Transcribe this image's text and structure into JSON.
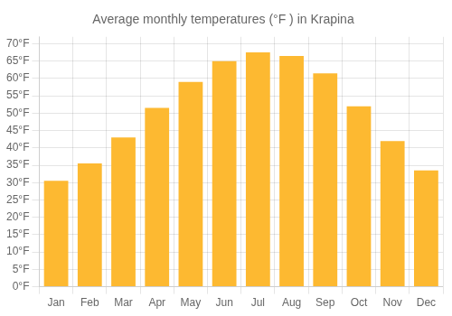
{
  "chart_data": {
    "type": "bar",
    "title": "Average monthly temperatures (°F ) in Krapina",
    "categories": [
      "Jan",
      "Feb",
      "Mar",
      "Apr",
      "May",
      "Jun",
      "Jul",
      "Aug",
      "Sep",
      "Oct",
      "Nov",
      "Dec"
    ],
    "values": [
      30.5,
      35.5,
      43,
      51.5,
      59,
      65,
      67.5,
      66.5,
      61.5,
      52,
      42,
      33.5
    ],
    "color": "#FDB931",
    "ylim": [
      0,
      72
    ],
    "yticks": [
      {
        "value": 0,
        "label": "0°F"
      },
      {
        "value": 5,
        "label": "5°F"
      },
      {
        "value": 10,
        "label": "10°F"
      },
      {
        "value": 15,
        "label": "15°F"
      },
      {
        "value": 20,
        "label": "20°F"
      },
      {
        "value": 25,
        "label": "25°F"
      },
      {
        "value": 30,
        "label": "30°F"
      },
      {
        "value": 35,
        "label": "35°F"
      },
      {
        "value": 40,
        "label": "40°F"
      },
      {
        "value": 45,
        "label": "45°F"
      },
      {
        "value": 50,
        "label": "50°F"
      },
      {
        "value": 55,
        "label": "55°F"
      },
      {
        "value": 60,
        "label": "60°F"
      },
      {
        "value": 65,
        "label": "65°F"
      },
      {
        "value": 70,
        "label": "70°F"
      }
    ],
    "grid": true
  }
}
